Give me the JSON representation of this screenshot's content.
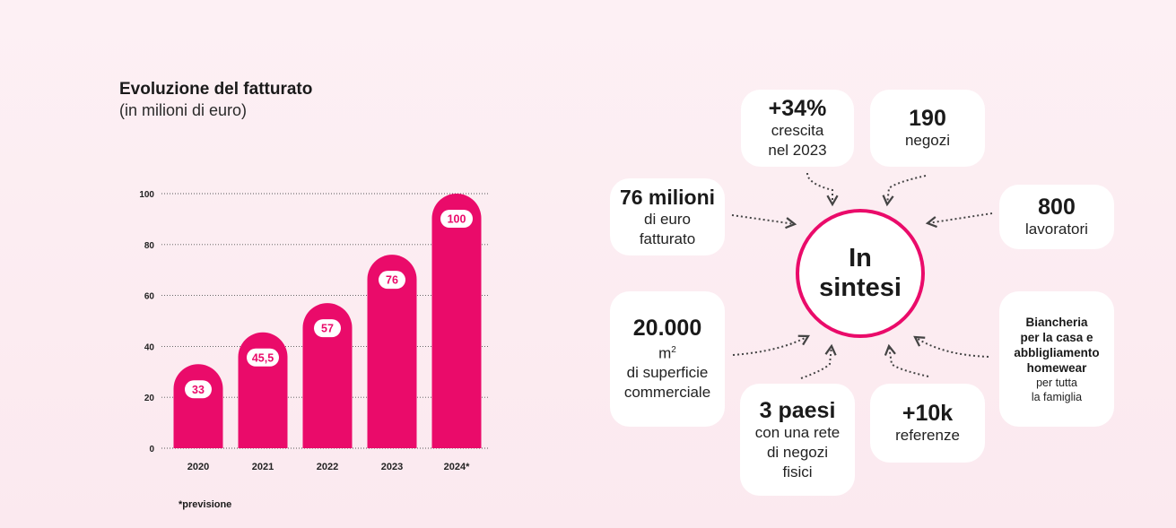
{
  "colors": {
    "accent": "#ea0b6a",
    "background": "#fdf0f4",
    "card": "#ffffff",
    "text": "#1a1a1a"
  },
  "header": {
    "title": "Evoluzione del fatturato",
    "subtitle": "(in milioni di euro)"
  },
  "footnote": "*previsione",
  "chart_data": {
    "type": "bar",
    "categories": [
      "2020",
      "2021",
      "2022",
      "2023",
      "2024*"
    ],
    "values": [
      33,
      45.5,
      57,
      76,
      100
    ],
    "value_labels": [
      "33",
      "45,5",
      "57",
      "76",
      "100"
    ],
    "y_ticks": [
      "0",
      "20",
      "40",
      "60",
      "80",
      "100"
    ],
    "ylim": [
      0,
      100
    ],
    "grid": "dotted horizontal",
    "color": "#ea0b6a"
  },
  "summary": {
    "center": {
      "line1": "In",
      "line2": "sintesi"
    },
    "growth": {
      "value": "+34%",
      "line1": "crescita",
      "line2": "nel 2023"
    },
    "stores": {
      "value": "190",
      "line1": "negozi"
    },
    "revenue": {
      "value": "76 milioni",
      "line1": "di euro",
      "line2": "fatturato"
    },
    "workers": {
      "value": "800",
      "line1": "lavoratori"
    },
    "surface": {
      "value": "20.000",
      "unit": "m",
      "unit_sup": "2",
      "line1": "di superficie",
      "line2": "commerciale"
    },
    "categories": {
      "line1": "Biancheria",
      "line2": "per la casa e",
      "line3": "abbligliamento",
      "line4": "homewear",
      "line5": "per tutta",
      "line6": "la famiglia"
    },
    "countries": {
      "value": "3 paesi",
      "line1": "con una rete",
      "line2": "di negozi",
      "line3": "fisici"
    },
    "references": {
      "value": "+10k",
      "line1": "referenze"
    }
  }
}
